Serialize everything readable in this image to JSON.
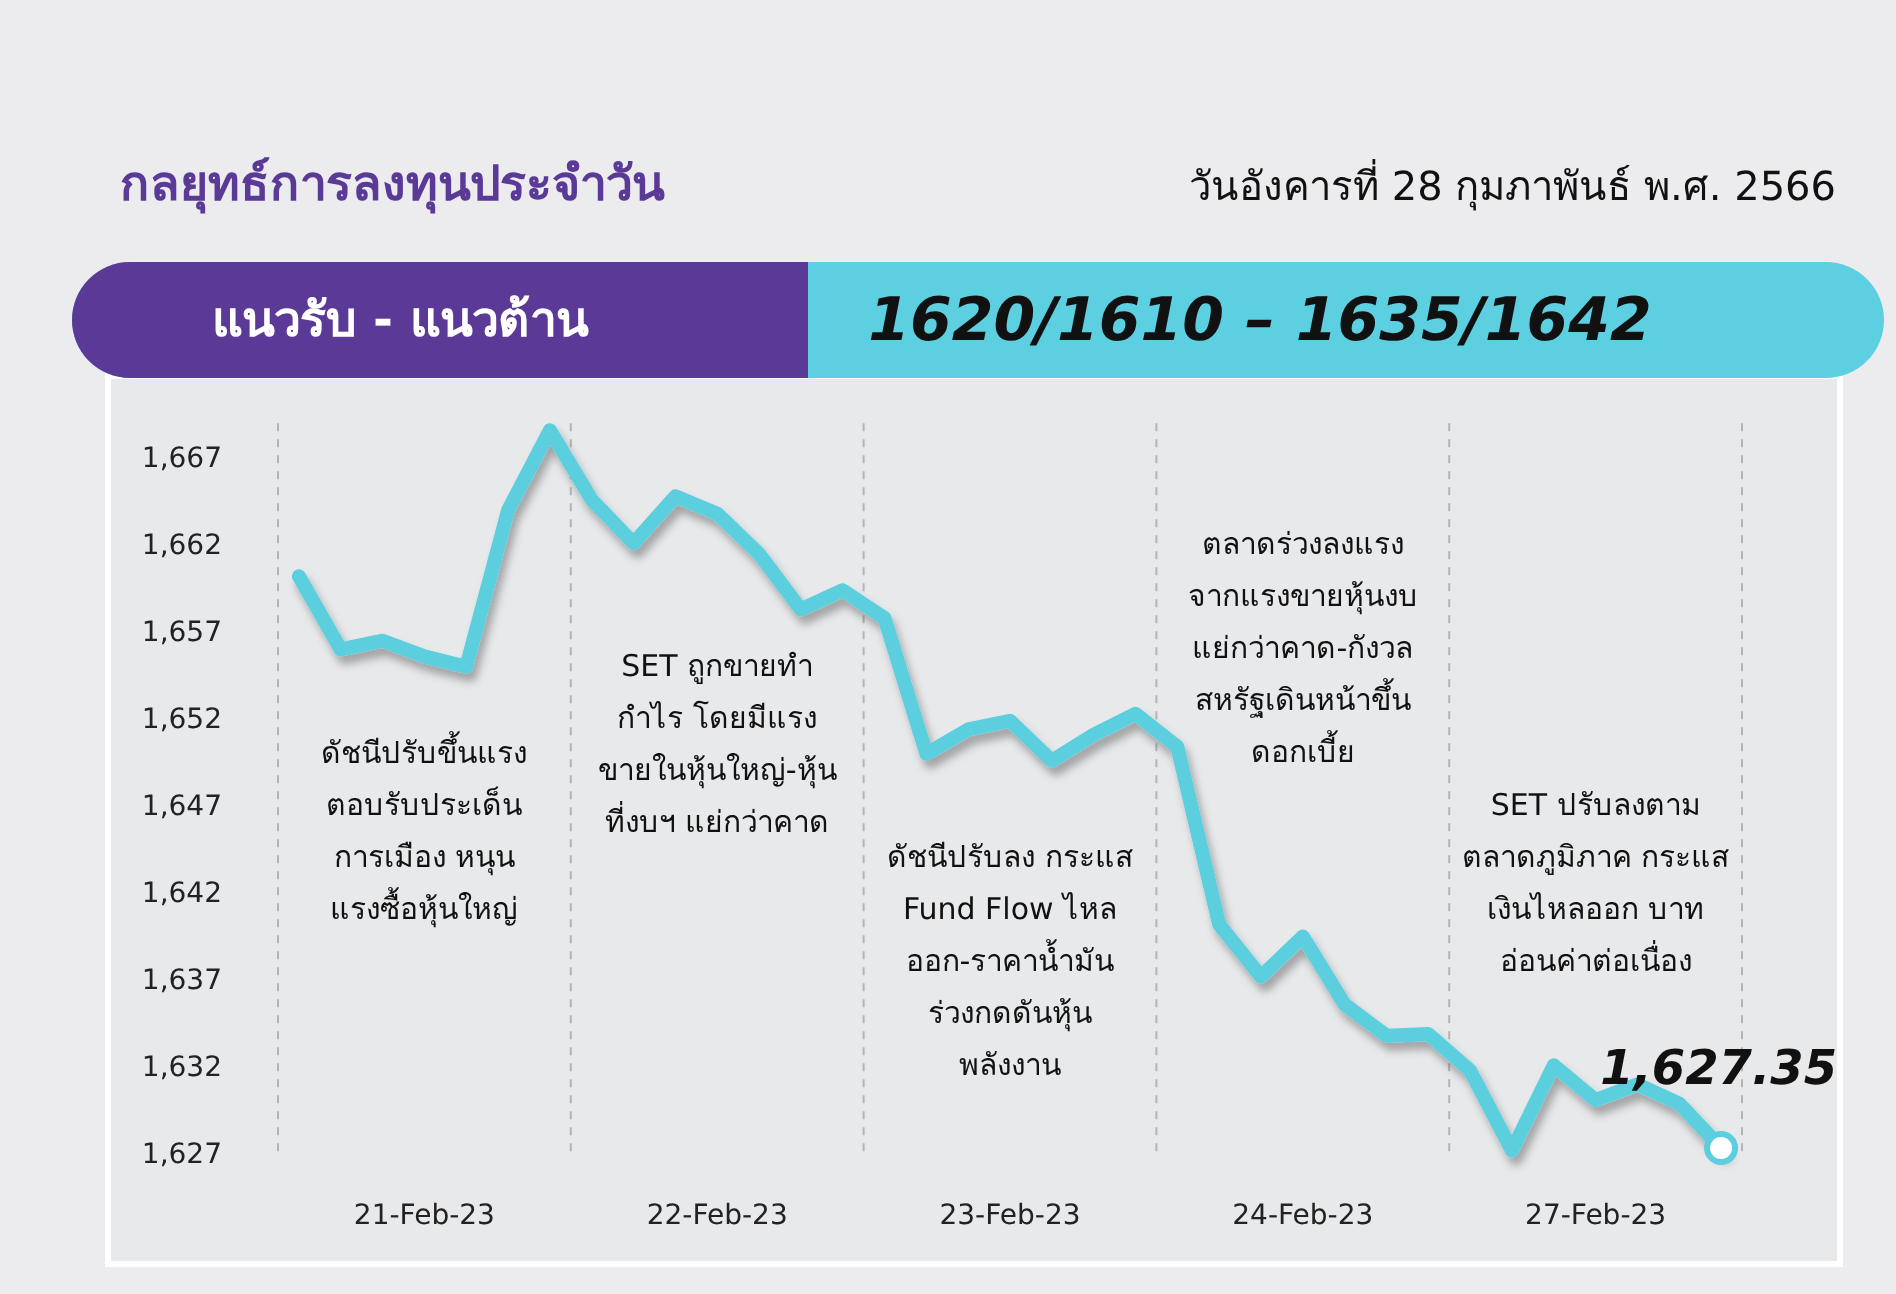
{
  "chart_data": {
    "type": "line",
    "title": "กลยุทธ์การลงทุนประจำวัน",
    "subtitle": "วันอังคารที่ 28 กุมภาพันธ์ พ.ศ. 2566",
    "annotations": [
      "แนวรับ - แนวต้าน",
      "1620/1610 – 1635/1642",
      "ดัชนีปรับขึ้นแรง\nตอบรับประเด็น\nการเมือง หนุน\nแรงซื้อหุ้นใหญ่",
      "SET ถูกขายทำ\nกำไร โดยมีแรง\nขายในหุ้นใหญ่-หุ้น\nที่งบฯ แย่กว่าคาด",
      "ดัชนีปรับลง กระแส\nFund Flow ไหล\nออก-ราคาน้ำมัน\nร่วงกดดันหุ้น\nพลังงาน",
      "ตลาดร่วงลงแรง\nจากแรงขายหุ้นงบ\nแย่กว่าคาด-กังวล\nสหรัฐเดินหน้าขึ้น\nดอกเบี้ย",
      "SET ปรับลงตาม\nตลาดภูมิภาค กระแส\nเงินไหลออก บาท\nอ่อนค่าต่อเนื่อง"
    ],
    "categories": [
      null,
      null,
      null,
      "21-Feb-23",
      null,
      null,
      null,
      null,
      null,
      null,
      "22-Feb-23",
      null,
      null,
      null,
      null,
      null,
      null,
      "23-Feb-23",
      null,
      null,
      null,
      null,
      null,
      null,
      "24-Feb-23",
      null,
      null,
      null,
      null,
      null,
      null,
      "27-Feb-23",
      null,
      null,
      null
    ],
    "series": [
      {
        "color": "#5bcfdf",
        "values": [
          1660.2,
          1656.0,
          1656.5,
          1655.6,
          1655.0,
          1664.0,
          1668.6,
          1664.6,
          1662.1,
          1664.8,
          1663.8,
          1661.5,
          1658.3,
          1659.4,
          1657.8,
          1650.0,
          1651.4,
          1651.9,
          1649.6,
          1651.1,
          1652.3,
          1650.4,
          1640.2,
          1637.2,
          1639.5,
          1635.6,
          1633.8,
          1633.9,
          1631.8,
          1627.2,
          1632.1,
          1630.1,
          1631.0,
          1629.9,
          1627.35
        ],
        "value_labels": [
          null,
          null,
          null,
          null,
          null,
          null,
          null,
          null,
          null,
          null,
          null,
          null,
          null,
          null,
          null,
          null,
          null,
          null,
          null,
          null,
          null,
          null,
          null,
          null,
          null,
          null,
          null,
          null,
          null,
          null,
          null,
          null,
          null,
          null,
          "1,627.35"
        ]
      }
    ],
    "ylim": [
      1627,
      1669
    ],
    "yticks": [
      {
        "value": 1627,
        "label": "1,627"
      },
      {
        "value": 1632,
        "label": "1,632"
      },
      {
        "value": 1637,
        "label": "1,637"
      },
      {
        "value": 1642,
        "label": "1,642"
      },
      {
        "value": 1647,
        "label": "1,647"
      },
      {
        "value": 1652,
        "label": "1,652"
      },
      {
        "value": 1657,
        "label": "1,657"
      },
      {
        "value": 1662,
        "label": "1,662"
      },
      {
        "value": 1667,
        "label": "1,667"
      }
    ],
    "marker": "none",
    "line_style": "solid",
    "grid": false
  }
}
